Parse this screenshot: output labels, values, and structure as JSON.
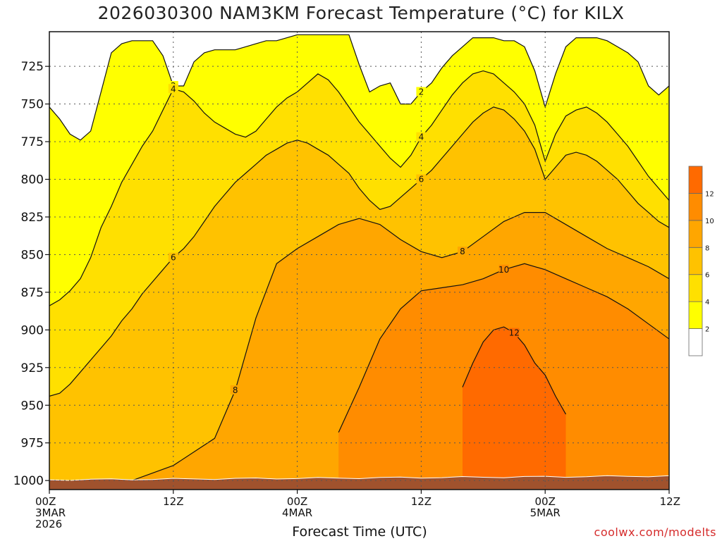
{
  "title": "2026030300 NAM3KM Forecast Temperature (°C) for KILX",
  "watermark": "coolwx.com/modelts",
  "chart_data": {
    "type": "contour",
    "xlabel": "Forecast Time (UTC)",
    "ylabel": "",
    "x_ticks": [
      {
        "hour": 0,
        "lines": [
          "00Z",
          "3MAR",
          "2026"
        ]
      },
      {
        "hour": 12,
        "lines": [
          "12Z"
        ]
      },
      {
        "hour": 24,
        "lines": [
          "00Z",
          "4MAR"
        ]
      },
      {
        "hour": 36,
        "lines": [
          "12Z"
        ]
      },
      {
        "hour": 48,
        "lines": [
          "00Z",
          "5MAR"
        ]
      },
      {
        "hour": 60,
        "lines": [
          "12Z"
        ]
      }
    ],
    "xlim": [
      0,
      60
    ],
    "ylim": [
      1006,
      702
    ],
    "y_ticks": [
      725,
      750,
      775,
      800,
      825,
      850,
      875,
      900,
      925,
      950,
      975,
      1000
    ],
    "grid": true,
    "colorbar": {
      "levels": [
        0,
        2,
        4,
        6,
        8,
        10,
        12,
        14
      ],
      "tick_labels": [
        "2",
        "4",
        "6",
        "8",
        "10",
        "12"
      ],
      "colors": [
        "#ffffff",
        "#ffff00",
        "#ffe000",
        "#ffc200",
        "#ffa600",
        "#ff8c00",
        "#ff6a00"
      ]
    },
    "contour_levels": [
      2,
      4,
      6,
      8,
      10,
      12
    ],
    "ground_color": "#a0522d",
    "contours": [
      {
        "level": 2,
        "hours": [
          0,
          1,
          2,
          3,
          4,
          5,
          6,
          7,
          8,
          9,
          10,
          11,
          12,
          13,
          14,
          15,
          16,
          17,
          18,
          19,
          20,
          21,
          22,
          23,
          24,
          25,
          26,
          27,
          28,
          29,
          30,
          31,
          32,
          33,
          34,
          35,
          36,
          37,
          38,
          39,
          40,
          41,
          42,
          43,
          44,
          45,
          46,
          47,
          48,
          49,
          50,
          51,
          52,
          53,
          54,
          55,
          56,
          57,
          58,
          59,
          60
        ],
        "pressure": [
          752,
          760,
          770,
          774,
          768,
          742,
          716,
          710,
          708,
          708,
          708,
          718,
          738,
          738,
          722,
          716,
          714,
          714,
          714,
          712,
          710,
          708,
          708,
          706,
          704,
          704,
          704,
          704,
          704,
          704,
          724,
          742,
          738,
          736,
          750,
          750,
          742,
          736,
          726,
          718,
          712,
          706,
          706,
          706,
          708,
          708,
          712,
          728,
          752,
          730,
          712,
          706,
          706,
          706,
          708,
          712,
          716,
          722,
          738,
          744,
          738
        ]
      },
      {
        "level": 4,
        "hours": [
          0,
          1,
          2,
          3,
          4,
          5,
          6,
          7,
          8,
          9,
          10,
          11,
          12,
          13,
          14,
          15,
          16,
          17,
          18,
          19,
          20,
          21,
          22,
          23,
          24,
          25,
          26,
          27,
          28,
          29,
          30,
          31,
          32,
          33,
          34,
          35,
          36,
          37,
          38,
          39,
          40,
          41,
          42,
          43,
          44,
          45,
          46,
          47,
          48,
          49,
          50,
          51,
          52,
          53,
          54,
          55,
          56,
          57,
          58,
          59,
          60
        ],
        "pressure": [
          884,
          880,
          874,
          866,
          852,
          832,
          818,
          802,
          790,
          778,
          768,
          754,
          740,
          742,
          748,
          756,
          762,
          766,
          770,
          772,
          768,
          760,
          752,
          746,
          742,
          736,
          730,
          734,
          742,
          752,
          762,
          770,
          778,
          786,
          792,
          784,
          772,
          764,
          754,
          744,
          736,
          730,
          728,
          730,
          736,
          742,
          750,
          764,
          788,
          770,
          758,
          754,
          752,
          756,
          762,
          770,
          778,
          788,
          798,
          806,
          814
        ]
      },
      {
        "level": 6,
        "hours": [
          0,
          1,
          2,
          3,
          4,
          5,
          6,
          7,
          8,
          9,
          10,
          11,
          12,
          13,
          14,
          15,
          16,
          17,
          18,
          19,
          20,
          21,
          22,
          23,
          24,
          25,
          26,
          27,
          28,
          29,
          30,
          31,
          32,
          33,
          34,
          35,
          36,
          37,
          38,
          39,
          40,
          41,
          42,
          43,
          44,
          45,
          46,
          47,
          48,
          49,
          50,
          51,
          52,
          53,
          54,
          55,
          56,
          57,
          58,
          59,
          60
        ],
        "pressure": [
          944,
          942,
          936,
          928,
          920,
          912,
          904,
          894,
          886,
          876,
          868,
          860,
          852,
          846,
          838,
          828,
          818,
          810,
          802,
          796,
          790,
          784,
          780,
          776,
          774,
          776,
          780,
          784,
          790,
          796,
          806,
          814,
          820,
          818,
          812,
          806,
          800,
          794,
          786,
          778,
          770,
          762,
          756,
          752,
          754,
          760,
          768,
          780,
          800,
          792,
          784,
          782,
          784,
          788,
          794,
          800,
          808,
          816,
          822,
          828,
          832
        ]
      },
      {
        "level": 8,
        "hours": [
          0,
          4,
          8,
          12,
          16,
          18,
          20,
          22,
          24,
          26,
          28,
          30,
          32,
          34,
          36,
          38,
          40,
          42,
          44,
          46,
          48,
          50,
          52,
          54,
          56,
          58,
          60
        ],
        "pressure": [
          1010,
          1006,
          1000,
          990,
          972,
          940,
          892,
          856,
          846,
          838,
          830,
          826,
          830,
          840,
          848,
          852,
          848,
          838,
          828,
          822,
          822,
          830,
          838,
          846,
          852,
          858,
          866
        ]
      },
      {
        "level": 10,
        "hours": [
          28,
          30,
          32,
          34,
          36,
          38,
          40,
          42,
          44,
          46,
          48,
          50,
          52,
          54,
          56,
          58,
          60
        ],
        "pressure": [
          968,
          938,
          906,
          886,
          874,
          872,
          870,
          866,
          860,
          856,
          860,
          866,
          872,
          878,
          886,
          896,
          906
        ]
      },
      {
        "level": 12,
        "hours": [
          40,
          41,
          42,
          43,
          44,
          45,
          46,
          47,
          48,
          49,
          50
        ],
        "pressure": [
          938,
          922,
          908,
          900,
          898,
          902,
          910,
          922,
          930,
          944,
          956
        ]
      }
    ]
  }
}
